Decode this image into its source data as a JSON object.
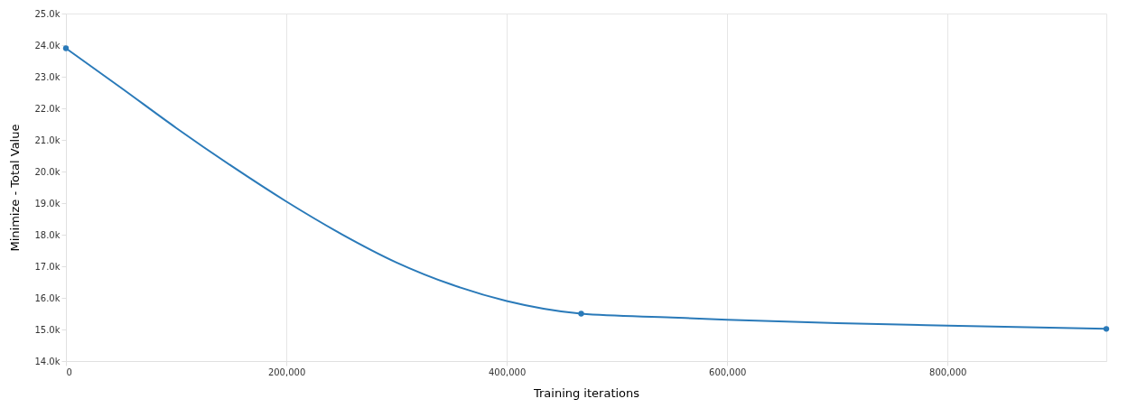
{
  "chart_data": {
    "type": "line",
    "xlabel": "Training iterations",
    "ylabel": "Minimize - Total Value",
    "series": [
      {
        "color": "#2a7ab9",
        "marker": "none",
        "x": [
          0,
          50000,
          100000,
          150000,
          200000,
          250000,
          300000,
          350000,
          400000,
          467500,
          550000,
          600000,
          700000,
          800000,
          944000
        ],
        "values": [
          23900,
          22650,
          21380,
          20180,
          19050,
          18020,
          17120,
          16420,
          15900,
          15500,
          15380,
          15310,
          15200,
          15120,
          15020
        ]
      },
      {
        "type": "scatter",
        "color": "#2a7ab9",
        "marker": "circle",
        "x": [
          0,
          467500,
          944000
        ],
        "values": [
          23900,
          15500,
          15020
        ]
      }
    ],
    "xlim": [
      0,
      944000
    ],
    "ylim": [
      14000,
      25000
    ],
    "xticks": [
      0,
      {
        "value": 200000,
        "label": "200,000"
      },
      {
        "value": 400000,
        "label": "400,000"
      },
      {
        "value": 600000,
        "label": "600,000"
      },
      {
        "value": 800000,
        "label": "800,000"
      }
    ],
    "yticks": [
      {
        "value": 14000,
        "label": "14.0k"
      },
      {
        "value": 15000,
        "label": "15.0k"
      },
      {
        "value": 16000,
        "label": "16.0k"
      },
      {
        "value": 17000,
        "label": "17.0k"
      },
      {
        "value": 18000,
        "label": "18.0k"
      },
      {
        "value": 19000,
        "label": "19.0k"
      },
      {
        "value": 20000,
        "label": "20.0k"
      },
      {
        "value": 21000,
        "label": "21.0k"
      },
      {
        "value": 22000,
        "label": "22.0k"
      },
      {
        "value": 23000,
        "label": "23.0k"
      },
      {
        "value": 24000,
        "label": "24.0k"
      },
      {
        "value": 25000,
        "label": "25.0k"
      }
    ],
    "grid": "x"
  }
}
